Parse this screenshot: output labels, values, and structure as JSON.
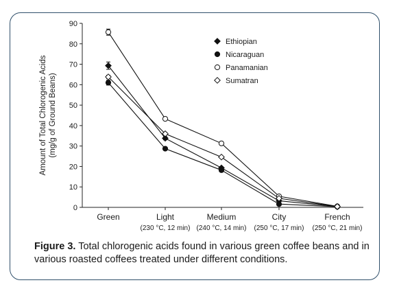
{
  "chart_data": {
    "type": "line",
    "categories": [
      "Green",
      "Light",
      "Medium",
      "City",
      "French"
    ],
    "category_sublabels": [
      "",
      "(230 °C, 12 min)",
      "(240 °C, 14 min)",
      "(250 °C, 17 min)",
      "(250 °C, 21 min)"
    ],
    "ylabel_line1": "Amount of Total Chlorogenic Acids",
    "ylabel_line2": "(mg/g of Ground Beans)",
    "ylim": [
      0,
      90
    ],
    "yticks": [
      0,
      10,
      20,
      30,
      40,
      50,
      60,
      70,
      80,
      90
    ],
    "grid": false,
    "legend_position": "top-right",
    "series": [
      {
        "name": "Ethiopian",
        "marker": "filled-diamond",
        "values": [
          69.3,
          33.8,
          19.3,
          3.2,
          0.4
        ],
        "errors": [
          1.8,
          0.8,
          0.6,
          0.3,
          0.1
        ]
      },
      {
        "name": "Nicaraguan",
        "marker": "filled-circle",
        "values": [
          61.0,
          28.7,
          18.2,
          1.6,
          0.3
        ],
        "errors": [
          1.2,
          0.6,
          0.6,
          0.3,
          0.1
        ]
      },
      {
        "name": "Panamanian",
        "marker": "open-circle",
        "values": [
          85.7,
          43.3,
          31.3,
          5.4,
          0.5
        ],
        "errors": [
          1.5,
          0.6,
          0.6,
          0.3,
          0.1
        ]
      },
      {
        "name": "Sumatran",
        "marker": "open-diamond",
        "values": [
          63.8,
          36.0,
          24.6,
          4.4,
          0.4
        ],
        "errors": [
          0.8,
          0.6,
          0.5,
          0.3,
          0.1
        ]
      }
    ]
  },
  "caption": {
    "label": "Figure 3.",
    "text": "Total chlorogenic acids found in various green coffee beans and in various roasted coffees treated under different conditions."
  }
}
